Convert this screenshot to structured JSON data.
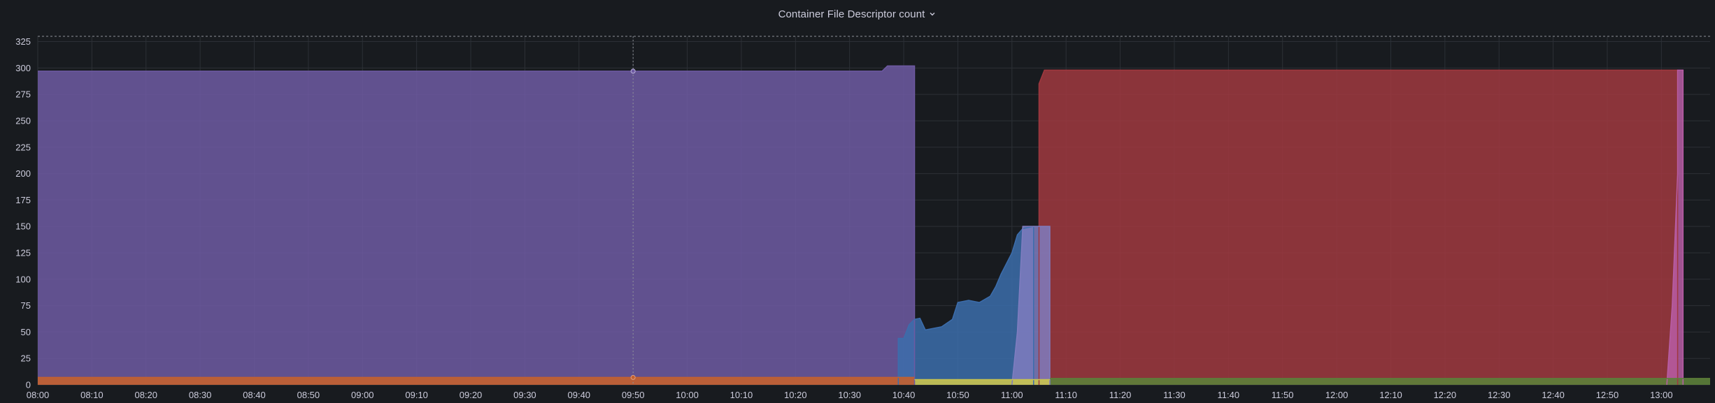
{
  "panel": {
    "title": "Container File Descriptor count"
  },
  "icons": {
    "title_menu": "chevron-down-icon"
  },
  "chart_data": {
    "type": "area",
    "title": "Container File Descriptor count",
    "xlabel": "",
    "ylabel": "",
    "x_unit": "time (HH:MM)",
    "xlim": [
      "08:00",
      "13:09"
    ],
    "ylim": [
      0,
      330
    ],
    "grid": true,
    "legend": "none",
    "threshold_line": 330,
    "hover_marker_time": "09:50",
    "y_ticks": [
      "0",
      "25",
      "50",
      "75",
      "100",
      "125",
      "150",
      "175",
      "200",
      "225",
      "250",
      "275",
      "300",
      "325"
    ],
    "x_ticks": [
      "08:00",
      "08:10",
      "08:20",
      "08:30",
      "08:40",
      "08:50",
      "09:00",
      "09:10",
      "09:20",
      "09:30",
      "09:40",
      "09:50",
      "10:00",
      "10:10",
      "10:20",
      "10:30",
      "10:40",
      "10:50",
      "11:00",
      "11:10",
      "11:20",
      "11:30",
      "11:40",
      "11:50",
      "12:00",
      "12:10",
      "12:20",
      "12:30",
      "12:40",
      "12:50",
      "13:00"
    ],
    "series": [
      {
        "color": "#6e5aa3",
        "points": [
          [
            "08:00",
            297
          ],
          [
            "10:36",
            297
          ],
          [
            "10:37",
            302
          ],
          [
            "10:42",
            302
          ],
          [
            "10:42",
            0
          ]
        ]
      },
      {
        "color": "#a0383f",
        "points": [
          [
            "11:05",
            0
          ],
          [
            "11:05",
            165
          ],
          [
            "11:05",
            285
          ],
          [
            "11:06",
            298
          ],
          [
            "13:03",
            298
          ],
          [
            "13:03",
            0
          ]
        ]
      },
      {
        "color": "#3c6dac",
        "points": [
          [
            "10:39",
            0
          ],
          [
            "10:39",
            44
          ],
          [
            "10:40",
            44
          ],
          [
            "10:41",
            57
          ],
          [
            "10:42",
            62
          ],
          [
            "10:43",
            63
          ],
          [
            "10:44",
            52
          ],
          [
            "10:47",
            55
          ],
          [
            "10:49",
            62
          ],
          [
            "10:50",
            78
          ],
          [
            "10:52",
            80
          ],
          [
            "10:54",
            78
          ],
          [
            "10:56",
            84
          ],
          [
            "10:57",
            93
          ],
          [
            "10:58",
            105
          ],
          [
            "11:00",
            125
          ],
          [
            "11:01",
            142
          ],
          [
            "11:02",
            148
          ],
          [
            "11:04",
            150
          ],
          [
            "11:04",
            0
          ]
        ]
      },
      {
        "color": "#7f7dc0",
        "points": [
          [
            "11:00",
            0
          ],
          [
            "11:01",
            50
          ],
          [
            "11:02",
            150
          ],
          [
            "11:07",
            150
          ],
          [
            "11:07",
            0
          ]
        ]
      },
      {
        "color": "#b85da6",
        "points": [
          [
            "13:01",
            0
          ],
          [
            "13:02",
            75
          ],
          [
            "13:03",
            200
          ],
          [
            "13:03",
            298
          ],
          [
            "13:04",
            298
          ],
          [
            "13:04",
            0
          ]
        ]
      },
      {
        "color": "#c4602f",
        "points": [
          [
            "08:00",
            7
          ],
          [
            "10:42",
            7
          ]
        ]
      },
      {
        "color": "#c9c44f",
        "points": [
          [
            "10:42",
            5
          ],
          [
            "11:07",
            5
          ]
        ]
      },
      {
        "color": "#5c7f3a",
        "points": [
          [
            "11:07",
            6
          ],
          [
            "13:09",
            6
          ]
        ]
      }
    ]
  },
  "colors": {
    "background": "#181b1f",
    "grid": "#2c3036",
    "text": "#ccccdc",
    "threshold": "#8e9198"
  }
}
